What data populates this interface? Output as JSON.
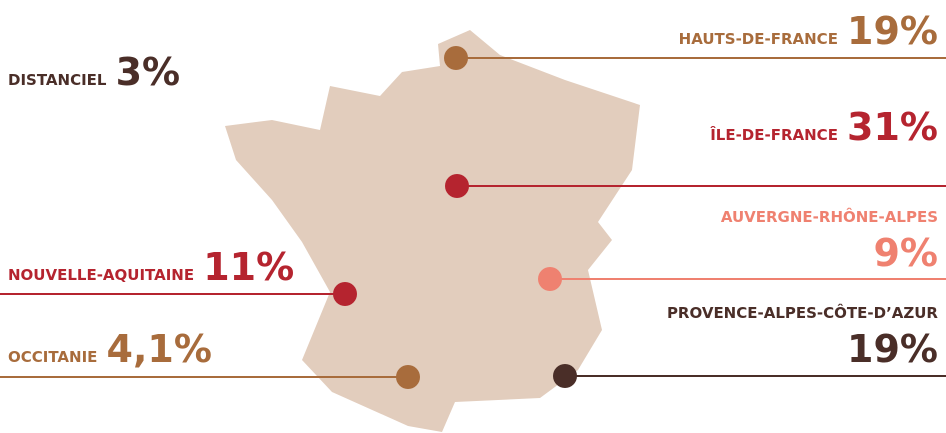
{
  "regions": [
    {
      "name": "DISTANCIEL",
      "value": "3%"
    },
    {
      "name": "HAUTS-DE-FRANCE",
      "value": "19%"
    },
    {
      "name": "ÎLE-DE-FRANCE",
      "value": "31%"
    },
    {
      "name": "AUVERGNE-RHÔNE-ALPES",
      "value": "9%"
    },
    {
      "name": "NOUVELLE-AQUITAINE",
      "value": "11%"
    },
    {
      "name": "PROVENCE-ALPES-CÔTE-D’AZUR",
      "value": "19%"
    },
    {
      "name": "OCCITANIE",
      "value": "4,1%"
    }
  ]
}
